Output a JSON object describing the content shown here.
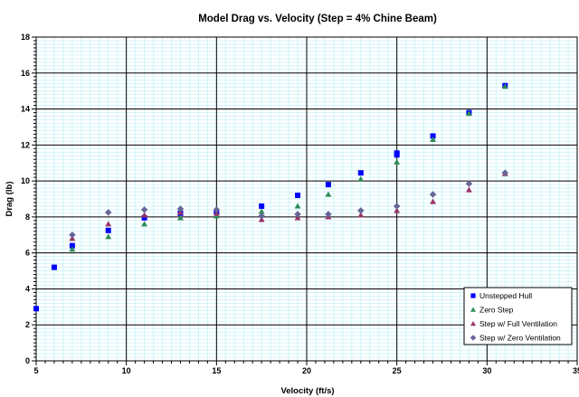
{
  "chart_data": {
    "type": "scatter",
    "title": "Model Drag vs. Velocity (Step = 4% Chine Beam)",
    "xlabel": "Velocity (ft/s)",
    "ylabel": "Drag (lb)",
    "xlim": [
      5,
      35
    ],
    "ylim": [
      0,
      18
    ],
    "x_major_ticks": [
      5,
      10,
      15,
      20,
      25,
      30,
      35
    ],
    "y_major_ticks": [
      0,
      2,
      4,
      6,
      8,
      10,
      12,
      14,
      16,
      18
    ],
    "grid": true,
    "legend_position": "bottom-right",
    "series": [
      {
        "name": "Unstepped Hull",
        "marker": "square",
        "color": "#0000ff",
        "points": [
          [
            5,
            2.9
          ],
          [
            6,
            5.2
          ],
          [
            7,
            6.4
          ],
          [
            9,
            7.25
          ],
          [
            11,
            7.95
          ],
          [
            13,
            8.2
          ],
          [
            15,
            8.25
          ],
          [
            17.5,
            8.6
          ],
          [
            19.5,
            9.2
          ],
          [
            21.2,
            9.8
          ],
          [
            23,
            10.45
          ],
          [
            25,
            11.45
          ],
          [
            25,
            11.55
          ],
          [
            27,
            12.5
          ],
          [
            29,
            13.8
          ],
          [
            31,
            15.3
          ]
        ]
      },
      {
        "name": "Zero Step",
        "marker": "triangle",
        "color": "#2e8b57",
        "points": [
          [
            7,
            6.2
          ],
          [
            9,
            6.9
          ],
          [
            11,
            7.6
          ],
          [
            13,
            7.95
          ],
          [
            15,
            8.05
          ],
          [
            17.5,
            8.3
          ],
          [
            19.5,
            8.6
          ],
          [
            21.2,
            9.25
          ],
          [
            23,
            10.1
          ],
          [
            25,
            11.05
          ],
          [
            27,
            12.3
          ],
          [
            29,
            13.75
          ],
          [
            31,
            15.25
          ]
        ]
      },
      {
        "name": "Step w/ Full Ventilation",
        "marker": "triangle",
        "color": "#993366",
        "points": [
          [
            7,
            6.8
          ],
          [
            9,
            7.6
          ],
          [
            11,
            8.1
          ],
          [
            13,
            8.25
          ],
          [
            15,
            8.2
          ],
          [
            17.5,
            7.85
          ],
          [
            19.5,
            7.95
          ],
          [
            21.2,
            8.0
          ],
          [
            23,
            8.1
          ],
          [
            25,
            8.35
          ],
          [
            27,
            8.85
          ],
          [
            29,
            9.5
          ],
          [
            31,
            10.4
          ]
        ]
      },
      {
        "name": "Step w/ Zero Ventilation",
        "marker": "diamond",
        "color": "#666699",
        "points": [
          [
            7,
            7.0
          ],
          [
            9,
            8.25
          ],
          [
            11,
            8.4
          ],
          [
            13,
            8.45
          ],
          [
            15,
            8.4
          ],
          [
            17.5,
            8.05
          ],
          [
            19.5,
            8.15
          ],
          [
            21.2,
            8.15
          ],
          [
            23,
            8.35
          ],
          [
            25,
            8.6
          ],
          [
            27,
            9.25
          ],
          [
            29,
            9.85
          ],
          [
            31,
            10.45
          ]
        ]
      }
    ]
  }
}
